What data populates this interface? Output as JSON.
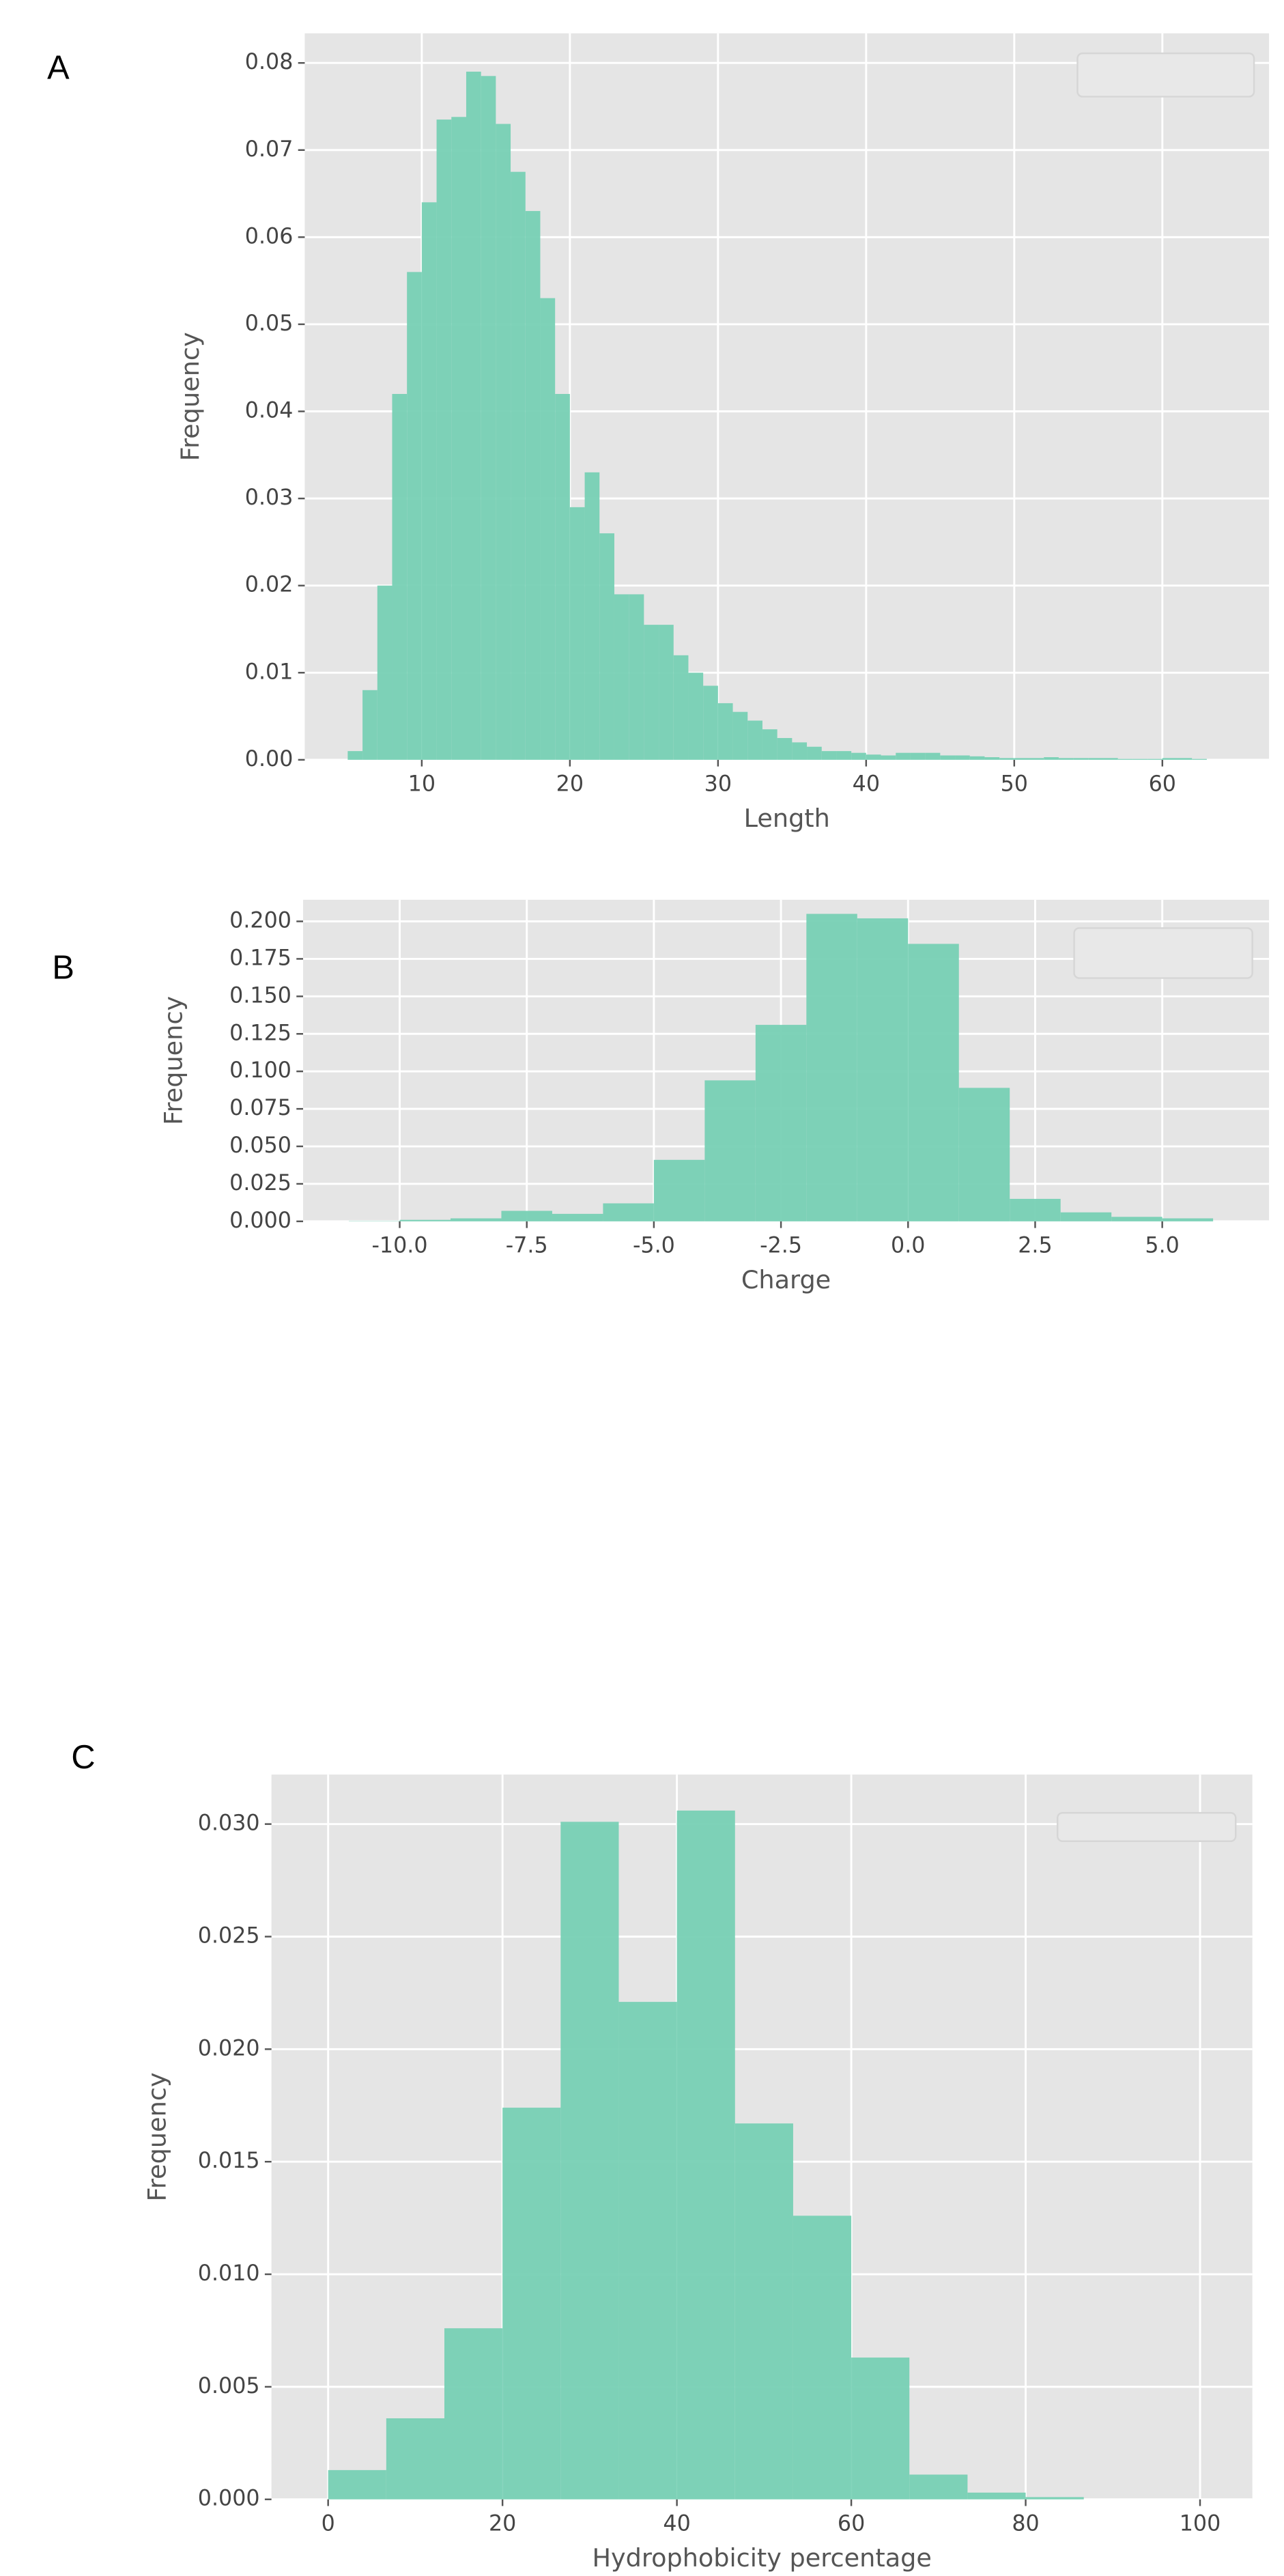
{
  "chart_data": [
    {
      "type": "histogram",
      "panel": "A",
      "xlabel": "Length",
      "ylabel": "Frequency",
      "color": "#77d0b4",
      "grid": true,
      "bins": [
        5,
        6,
        7,
        8,
        9,
        10,
        11,
        12,
        13,
        14,
        15,
        16,
        17,
        18,
        19,
        20,
        21,
        22,
        23,
        24,
        25,
        26,
        27,
        28,
        29,
        30,
        31,
        32,
        33,
        34,
        35,
        36,
        37,
        38,
        39,
        40,
        41,
        42,
        43,
        44,
        45,
        46,
        47,
        48,
        49,
        50,
        51,
        52,
        53,
        54,
        55,
        56,
        57,
        58,
        59,
        60,
        61,
        62,
        63
      ],
      "values": [
        0.001,
        0.008,
        0.02,
        0.042,
        0.056,
        0.064,
        0.0735,
        0.0738,
        0.079,
        0.0785,
        0.073,
        0.0675,
        0.063,
        0.053,
        0.042,
        0.029,
        0.033,
        0.026,
        0.019,
        0.019,
        0.0155,
        0.0155,
        0.012,
        0.01,
        0.0085,
        0.0065,
        0.0055,
        0.0045,
        0.0035,
        0.0025,
        0.002,
        0.0015,
        0.001,
        0.001,
        0.0008,
        0.0006,
        0.0005,
        0.0008,
        0.0008,
        0.0008,
        0.0005,
        0.0005,
        0.0004,
        0.0003,
        0.0002,
        0.0002,
        0.0002,
        0.0003,
        0.0002,
        0.0002,
        0.0002,
        0.0002,
        0.0001,
        0.0001,
        0.0001,
        0.0002,
        0.0002,
        0.0001
      ],
      "xlim": [
        2.1,
        67.2
      ],
      "ylim": [
        0,
        0.0834
      ],
      "xticks": [
        10,
        20,
        30,
        40,
        50,
        60
      ],
      "yticks": [
        {
          "value": 0,
          "label": "0.00"
        },
        {
          "value": 0.01,
          "label": "0.01"
        },
        {
          "value": 0.02,
          "label": "0.02"
        },
        {
          "value": 0.03,
          "label": "0.03"
        },
        {
          "value": 0.04,
          "label": "0.04"
        },
        {
          "value": 0.05,
          "label": "0.05"
        },
        {
          "value": 0.06,
          "label": "0.06"
        },
        {
          "value": 0.07,
          "label": "0.07"
        },
        {
          "value": 0.08,
          "label": "0.08"
        }
      ]
    },
    {
      "type": "histogram",
      "panel": "B",
      "xlabel": "Charge",
      "ylabel": "Frequency",
      "color": "#77d0b4",
      "grid": true,
      "bins": [
        -11,
        -10,
        -9,
        -8,
        -7,
        -6,
        -5,
        -4,
        -3,
        -2,
        -1,
        0,
        1,
        2,
        3,
        4,
        5,
        6
      ],
      "values": [
        0.0002,
        0.001,
        0.002,
        0.007,
        0.005,
        0.012,
        0.041,
        0.094,
        0.131,
        0.205,
        0.202,
        0.185,
        0.089,
        0.015,
        0.006,
        0.003,
        0.002
      ],
      "xlim": [
        -11.9,
        7.1
      ],
      "ylim": [
        0,
        0.2144
      ],
      "xticks": [
        {
          "value": -10,
          "label": "-10.0"
        },
        {
          "value": -7.5,
          "label": "-7.5"
        },
        {
          "value": -5,
          "label": "-5.0"
        },
        {
          "value": -2.5,
          "label": "-2.5"
        },
        {
          "value": 0,
          "label": "0.0"
        },
        {
          "value": 2.5,
          "label": "2.5"
        },
        {
          "value": 5,
          "label": "5.0"
        }
      ],
      "yticks": [
        {
          "value": 0,
          "label": "0.000"
        },
        {
          "value": 0.025,
          "label": "0.025"
        },
        {
          "value": 0.05,
          "label": "0.050"
        },
        {
          "value": 0.075,
          "label": "0.075"
        },
        {
          "value": 0.1,
          "label": "0.100"
        },
        {
          "value": 0.125,
          "label": "0.125"
        },
        {
          "value": 0.15,
          "label": "0.150"
        },
        {
          "value": 0.175,
          "label": "0.175"
        },
        {
          "value": 0.2,
          "label": "0.200"
        }
      ]
    },
    {
      "type": "histogram",
      "panel": "C",
      "xlabel": "Hydrophobicity percentage",
      "ylabel": "Frequency",
      "color": "#77d0b4",
      "grid": true,
      "bins": [
        0,
        6.667,
        13.333,
        20,
        26.667,
        33.333,
        40,
        46.667,
        53.333,
        60,
        66.667,
        73.333,
        80,
        86.667,
        93.333,
        100
      ],
      "values": [
        0.0013,
        0.0036,
        0.0076,
        0.0174,
        0.0301,
        0.0221,
        0.0306,
        0.0167,
        0.0126,
        0.0063,
        0.0011,
        0.0003,
        0.0001,
        0,
        0
      ],
      "xlim": [
        -6.5,
        106
      ],
      "ylim": [
        0,
        0.0322
      ],
      "xticks": [
        0,
        20,
        40,
        60,
        80,
        100
      ],
      "yticks": [
        {
          "value": 0,
          "label": "0.000"
        },
        {
          "value": 0.005,
          "label": "0.005"
        },
        {
          "value": 0.01,
          "label": "0.010"
        },
        {
          "value": 0.015,
          "label": "0.015"
        },
        {
          "value": 0.02,
          "label": "0.020"
        },
        {
          "value": 0.025,
          "label": "0.025"
        },
        {
          "value": 0.03,
          "label": "0.030"
        }
      ]
    }
  ]
}
